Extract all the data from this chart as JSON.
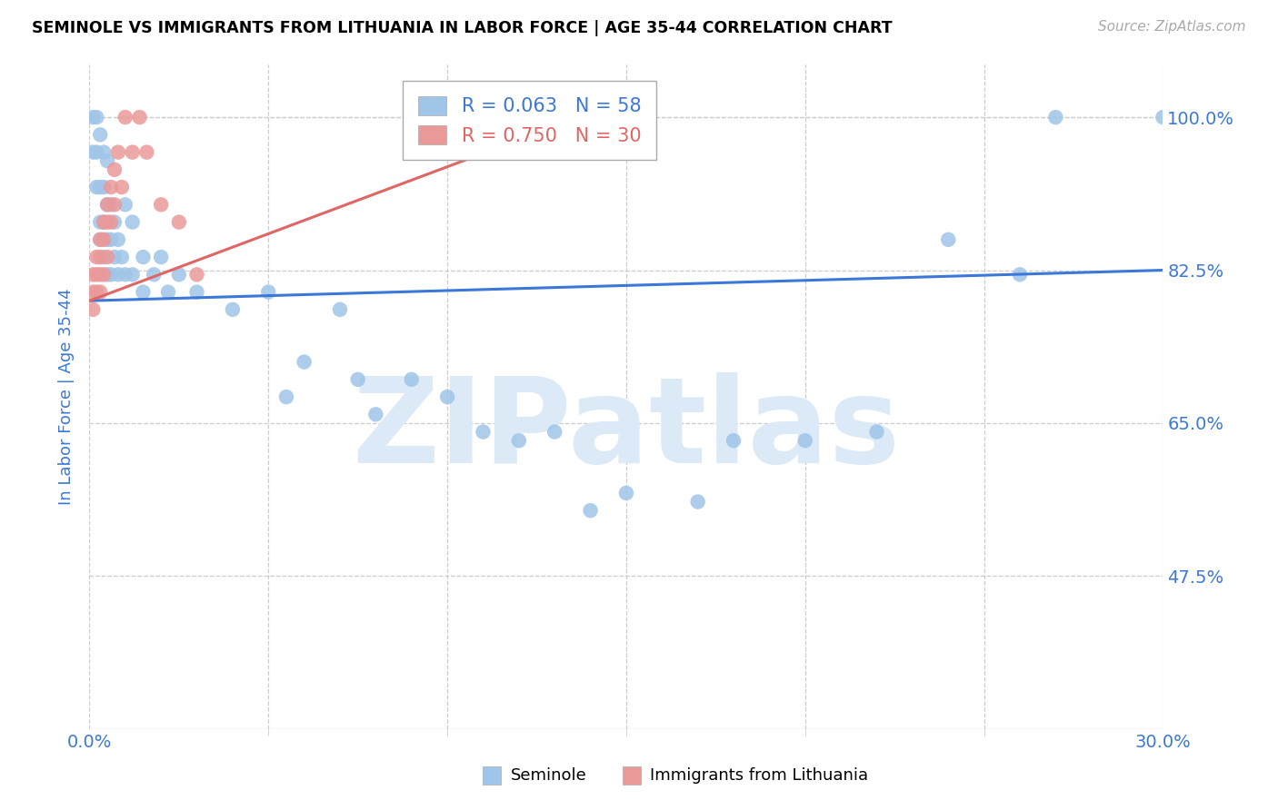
{
  "title": "SEMINOLE VS IMMIGRANTS FROM LITHUANIA IN LABOR FORCE | AGE 35-44 CORRELATION CHART",
  "source": "Source: ZipAtlas.com",
  "ylabel": "In Labor Force | Age 35-44",
  "xlim": [
    0.0,
    0.3
  ],
  "ylim": [
    0.3,
    1.06
  ],
  "yticks": [
    0.475,
    0.65,
    0.825,
    1.0
  ],
  "ytick_labels": [
    "47.5%",
    "65.0%",
    "82.5%",
    "100.0%"
  ],
  "xtick_left_label": "0.0%",
  "xtick_right_label": "30.0%",
  "seminole_R": 0.063,
  "seminole_N": 58,
  "lithuania_R": 0.75,
  "lithuania_N": 30,
  "blue_scatter_color": "#9fc5e8",
  "pink_scatter_color": "#ea9999",
  "trend_blue": "#3c78d8",
  "trend_pink": "#e06666",
  "axis_color": "#3c78d8",
  "title_color": "#000000",
  "grid_color": "#cccccc",
  "watermark_color": "#dce9f7",
  "watermark_text": "ZIPatlas",
  "bottom_label_seminole": "Seminole",
  "bottom_label_lithuania": "Immigrants from Lithuania",
  "seminole_x": [
    0.001,
    0.001,
    0.002,
    0.002,
    0.002,
    0.003,
    0.003,
    0.003,
    0.003,
    0.004,
    0.004,
    0.004,
    0.004,
    0.005,
    0.005,
    0.005,
    0.005,
    0.006,
    0.006,
    0.006,
    0.007,
    0.007,
    0.008,
    0.008,
    0.009,
    0.01,
    0.01,
    0.012,
    0.012,
    0.015,
    0.015,
    0.018,
    0.02,
    0.022,
    0.025,
    0.03,
    0.04,
    0.05,
    0.055,
    0.06,
    0.07,
    0.075,
    0.08,
    0.09,
    0.1,
    0.11,
    0.12,
    0.13,
    0.14,
    0.15,
    0.17,
    0.18,
    0.2,
    0.22,
    0.24,
    0.26,
    0.27,
    0.3
  ],
  "seminole_y": [
    1.0,
    0.96,
    1.0,
    0.96,
    0.92,
    0.98,
    0.92,
    0.88,
    0.86,
    0.96,
    0.92,
    0.88,
    0.84,
    0.95,
    0.9,
    0.86,
    0.82,
    0.9,
    0.86,
    0.82,
    0.88,
    0.84,
    0.86,
    0.82,
    0.84,
    0.9,
    0.82,
    0.88,
    0.82,
    0.84,
    0.8,
    0.82,
    0.84,
    0.8,
    0.82,
    0.8,
    0.78,
    0.8,
    0.68,
    0.72,
    0.78,
    0.7,
    0.66,
    0.7,
    0.68,
    0.64,
    0.63,
    0.64,
    0.55,
    0.57,
    0.56,
    0.63,
    0.63,
    0.64,
    0.86,
    0.82,
    1.0,
    1.0
  ],
  "lithuania_x": [
    0.001,
    0.001,
    0.001,
    0.002,
    0.002,
    0.002,
    0.003,
    0.003,
    0.003,
    0.003,
    0.004,
    0.004,
    0.004,
    0.005,
    0.005,
    0.005,
    0.006,
    0.006,
    0.007,
    0.007,
    0.008,
    0.009,
    0.01,
    0.012,
    0.014,
    0.016,
    0.02,
    0.025,
    0.03,
    0.14
  ],
  "lithuania_y": [
    0.82,
    0.8,
    0.78,
    0.84,
    0.82,
    0.8,
    0.86,
    0.84,
    0.82,
    0.8,
    0.88,
    0.86,
    0.82,
    0.9,
    0.88,
    0.84,
    0.92,
    0.88,
    0.94,
    0.9,
    0.96,
    0.92,
    1.0,
    0.96,
    1.0,
    0.96,
    0.9,
    0.88,
    0.82,
    1.0
  ],
  "blue_trend_x": [
    0.0,
    0.3
  ],
  "blue_trend_y": [
    0.79,
    0.825
  ],
  "pink_trend_x": [
    0.0,
    0.15
  ],
  "pink_trend_y": [
    0.79,
    1.02
  ]
}
